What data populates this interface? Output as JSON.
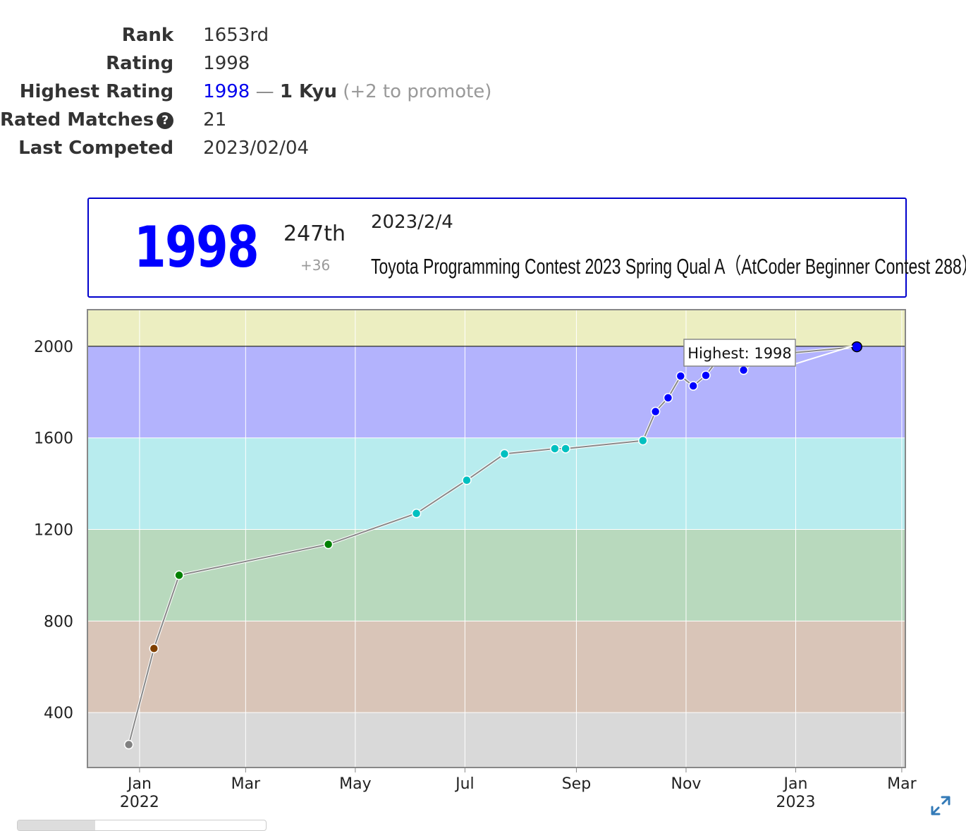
{
  "profile": {
    "rows": [
      {
        "key": "rank",
        "label": "Rank",
        "value": "1653rd"
      },
      {
        "key": "rating",
        "label": "Rating",
        "value": "1998"
      },
      {
        "key": "highest",
        "label": "Highest Rating",
        "value": "1998",
        "dash": "—",
        "kyu": "1 Kyu",
        "promote": "(+2 to promote)"
      },
      {
        "key": "matches",
        "label": "Rated Matches",
        "value": "21",
        "help_icon": "question-circle-icon"
      },
      {
        "key": "last",
        "label": "Last Competed",
        "value": "2023/02/04"
      }
    ]
  },
  "status": {
    "rating": "1998",
    "place": "247th",
    "diff": "+36",
    "date": "2023/2/4",
    "contest": "Toyota Programming Contest 2023 Spring Qual A（AtCoder Beginner Contest 288）",
    "border_color": "#0000cc",
    "rating_color": "#0000ff"
  },
  "chart_data": {
    "type": "line",
    "x_range": [
      "2021-12-03",
      "2023-03-03"
    ],
    "ylim": [
      160,
      2160
    ],
    "yticks": [
      400,
      800,
      1200,
      1600,
      2000
    ],
    "xticks": [
      {
        "date": "2022-01-01",
        "label": "Jan",
        "sublabel": "2022"
      },
      {
        "date": "2022-03-01",
        "label": "Mar",
        "sublabel": ""
      },
      {
        "date": "2022-05-01",
        "label": "May",
        "sublabel": ""
      },
      {
        "date": "2022-07-01",
        "label": "Jul",
        "sublabel": ""
      },
      {
        "date": "2022-09-01",
        "label": "Sep",
        "sublabel": ""
      },
      {
        "date": "2022-11-01",
        "label": "Nov",
        "sublabel": ""
      },
      {
        "date": "2023-01-01",
        "label": "Jan",
        "sublabel": "2023"
      },
      {
        "date": "2023-03-01",
        "label": "Mar",
        "sublabel": ""
      }
    ],
    "bands": [
      {
        "from": 0,
        "to": 400,
        "color": "#d9d9d9"
      },
      {
        "from": 400,
        "to": 800,
        "color": "#d9c5b8"
      },
      {
        "from": 800,
        "to": 1200,
        "color": "#b8d9bd"
      },
      {
        "from": 1200,
        "to": 1600,
        "color": "#b8ecee"
      },
      {
        "from": 1600,
        "to": 2000,
        "color": "#b3b3fd"
      },
      {
        "from": 2000,
        "to": 2400,
        "color": "#eceec1"
      }
    ],
    "series": [
      {
        "x": [
          "2021-12-26",
          "2022-01-09",
          "2022-01-23",
          "2022-04-16",
          "2022-06-04",
          "2022-07-02",
          "2022-07-23",
          "2022-08-20",
          "2022-08-26",
          "2022-10-08",
          "2022-10-15",
          "2022-10-22",
          "2022-10-29",
          "2022-11-05",
          "2022-11-12",
          "2022-11-19",
          "2022-11-26",
          "2022-12-03",
          "2022-12-10",
          "2022-12-17",
          "2023-02-04"
        ],
        "y": [
          260,
          680,
          1000,
          1135,
          1270,
          1415,
          1530,
          1553,
          1553,
          1588,
          1715,
          1775,
          1870,
          1827,
          1873,
          1946,
          1963,
          1896,
          1945,
          1962,
          1998
        ],
        "colors": [
          "#808080",
          "#804000",
          "#008000",
          "#008000",
          "#00c0c0",
          "#00c0c0",
          "#00c0c0",
          "#00c0c0",
          "#00c0c0",
          "#00c0c0",
          "#0000ff",
          "#0000ff",
          "#0000ff",
          "#0000ff",
          "#0000ff",
          "#0000ff",
          "#0000ff",
          "#0000ff",
          "#0000ff",
          "#0000ff",
          "#0000ff"
        ]
      }
    ],
    "annotation": {
      "text": "Highest: 1998",
      "x": "2023-02-04",
      "y": 1998
    }
  }
}
